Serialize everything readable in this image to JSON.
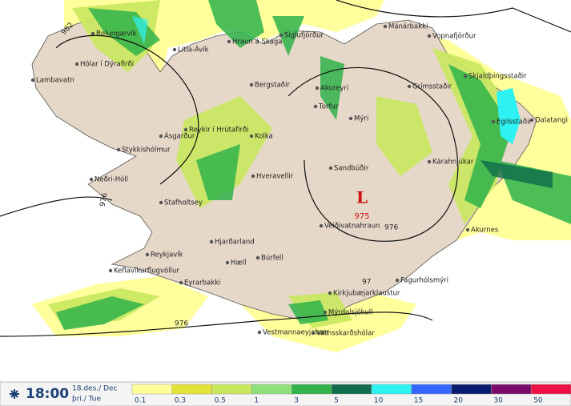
{
  "map": {
    "low": {
      "symbol": "L",
      "pressure": "975"
    },
    "isobar_labels": [
      "982",
      "976",
      "976",
      "976",
      "97"
    ],
    "stations": [
      "Bolungarvík",
      "Hólar í Dýrafirði",
      "Lambavatn",
      "Litla-Ávík",
      "Hraun á Skaga",
      "Siglufjörður",
      "Mánárbakki",
      "Vopnafjörður",
      "Skjaldþingsstaðir",
      "Grímsstaðir",
      "Bergstaðir",
      "Akureyri",
      "Torfur",
      "Mýri",
      "Reykir í Hrútafirði",
      "Kolka",
      "Ásgarður",
      "Stykkishólmur",
      "Hveravellir",
      "Sandbúðir",
      "Kárahnjúkar",
      "Dalatangi",
      "Egilsstaðir",
      "Neðri-Hóll",
      "Stafholtsey",
      "Veiðivatnahraun",
      "Akurnes",
      "Hjarðarland",
      "Búrfell",
      "Hæll",
      "Reykjavík",
      "Keflavíkurflugvöllur",
      "Eyrarbakki",
      "Fagurhólsmýri",
      "Kirkjubæjarklaustur",
      "Mýrdalsjökull",
      "Vestmannaeyjabær",
      "Vatnsskarðshólar"
    ]
  },
  "footer": {
    "time": "18:00",
    "date": "18.des./ Dec",
    "weekday": "þri./ Tue"
  },
  "legend": {
    "items": [
      {
        "label": "0.1",
        "color": "#ffff9c"
      },
      {
        "label": "0.3",
        "color": "#e3e236"
      },
      {
        "label": "0.5",
        "color": "#c9e85e"
      },
      {
        "label": "1",
        "color": "#8ee07a"
      },
      {
        "label": "3",
        "color": "#2fb34a"
      },
      {
        "label": "5",
        "color": "#0e6b4b"
      },
      {
        "label": "10",
        "color": "#2ef2f2"
      },
      {
        "label": "15",
        "color": "#3366ff"
      },
      {
        "label": "20",
        "color": "#0a1a6e"
      },
      {
        "label": "30",
        "color": "#7a0a6a"
      },
      {
        "label": "50",
        "color": "#ee1144"
      }
    ]
  }
}
